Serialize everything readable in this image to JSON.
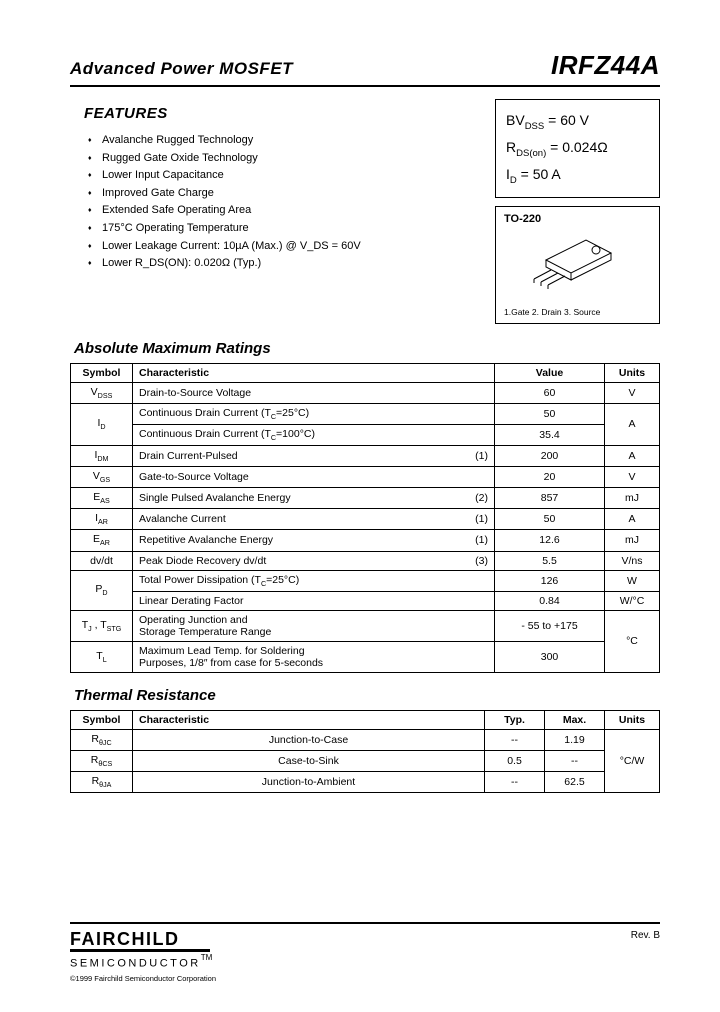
{
  "header": {
    "left": "Advanced Power MOSFET",
    "right": "IRFZ44A"
  },
  "features": {
    "title": "FEATURES",
    "items": [
      "Avalanche Rugged Technology",
      "Rugged Gate Oxide Technology",
      "Lower Input Capacitance",
      "Improved Gate Charge",
      "Extended Safe Operating Area",
      "175°C Operating Temperature",
      "Lower Leakage Current: 10µA (Max.) @ V_DS = 60V",
      "Lower R_DS(ON): 0.020Ω (Typ.)"
    ]
  },
  "key_specs": {
    "line1_label": "BV",
    "line1_sub": "DSS",
    "line1_val": "= 60 V",
    "line2_label": "R",
    "line2_sub": "DS(on)",
    "line2_val": "= 0.024Ω",
    "line3_label": "I",
    "line3_sub": "D",
    "line3_val": "= 50 A"
  },
  "package": {
    "name": "TO-220",
    "pins": "1.Gate  2. Drain  3. Source"
  },
  "abs_max": {
    "title": "Absolute Maximum Ratings",
    "headers": {
      "sym": "Symbol",
      "char": "Characteristic",
      "val": "Value",
      "unit": "Units"
    },
    "rows": [
      {
        "sym": "V<sub>DSS</sub>",
        "char": "Drain-to-Source Voltage",
        "val": "60",
        "unit": "V"
      },
      {
        "sym": "I<sub>D</sub>",
        "char": "Continuous Drain Current (T<sub>C</sub>=25°C)",
        "val": "50",
        "unit": "A",
        "sym_rowspan": 2,
        "unit_rowspan": 2
      },
      {
        "char": "Continuous Drain Current (T<sub>C</sub>=100°C)",
        "val": "35.4"
      },
      {
        "sym": "I<sub>DM</sub>",
        "char": "Drain Current-Pulsed",
        "note": "(1)",
        "val": "200",
        "unit": "A"
      },
      {
        "sym": "V<sub>GS</sub>",
        "char": "Gate-to-Source Voltage",
        "val": "20",
        "unit": "V"
      },
      {
        "sym": "E<sub>AS</sub>",
        "char": "Single Pulsed Avalanche Energy",
        "note": "(2)",
        "val": "857",
        "unit": "mJ"
      },
      {
        "sym": "I<sub>AR</sub>",
        "char": "Avalanche Current",
        "note": "(1)",
        "val": "50",
        "unit": "A"
      },
      {
        "sym": "E<sub>AR</sub>",
        "char": "Repetitive Avalanche Energy",
        "note": "(1)",
        "val": "12.6",
        "unit": "mJ"
      },
      {
        "sym": "dv/dt",
        "char": "Peak Diode Recovery dv/dt",
        "note": "(3)",
        "val": "5.5",
        "unit": "V/ns"
      },
      {
        "sym": "P<sub>D</sub>",
        "char": "Total Power Dissipation (T<sub>C</sub>=25°C)",
        "val": "126",
        "unit": "W",
        "sym_rowspan": 2
      },
      {
        "char": "Linear Derating Factor",
        "val": "0.84",
        "unit": "W/°C"
      },
      {
        "sym": "T<sub>J</sub> , T<sub>STG</sub>",
        "char": "Operating Junction and<br>Storage Temperature Range",
        "val": "- 55 to +175",
        "unit": "°C",
        "unit_rowspan": 2
      },
      {
        "sym": "T<sub>L</sub>",
        "char": "Maximum Lead Temp. for Soldering<br>Purposes, 1/8″ from case for 5-seconds",
        "val": "300"
      }
    ]
  },
  "thermal": {
    "title": "Thermal Resistance",
    "headers": {
      "sym": "Symbol",
      "char": "Characteristic",
      "typ": "Typ.",
      "max": "Max.",
      "unit": "Units"
    },
    "rows": [
      {
        "sym": "R<sub>θJC</sub>",
        "char": "Junction-to-Case",
        "typ": "--",
        "max": "1.19"
      },
      {
        "sym": "R<sub>θCS</sub>",
        "char": "Case-to-Sink",
        "typ": "0.5",
        "max": "--"
      },
      {
        "sym": "R<sub>θJA</sub>",
        "char": "Junction-to-Ambient",
        "typ": "--",
        "max": "62.5"
      }
    ],
    "unit": "°C/W"
  },
  "footer": {
    "logo_top": "FAIRCHILD",
    "logo_bot": "SEMICONDUCTOR",
    "tm": "TM",
    "copyright": "©1999 Fairchild Semiconductor Corporation",
    "rev": "Rev. B"
  }
}
